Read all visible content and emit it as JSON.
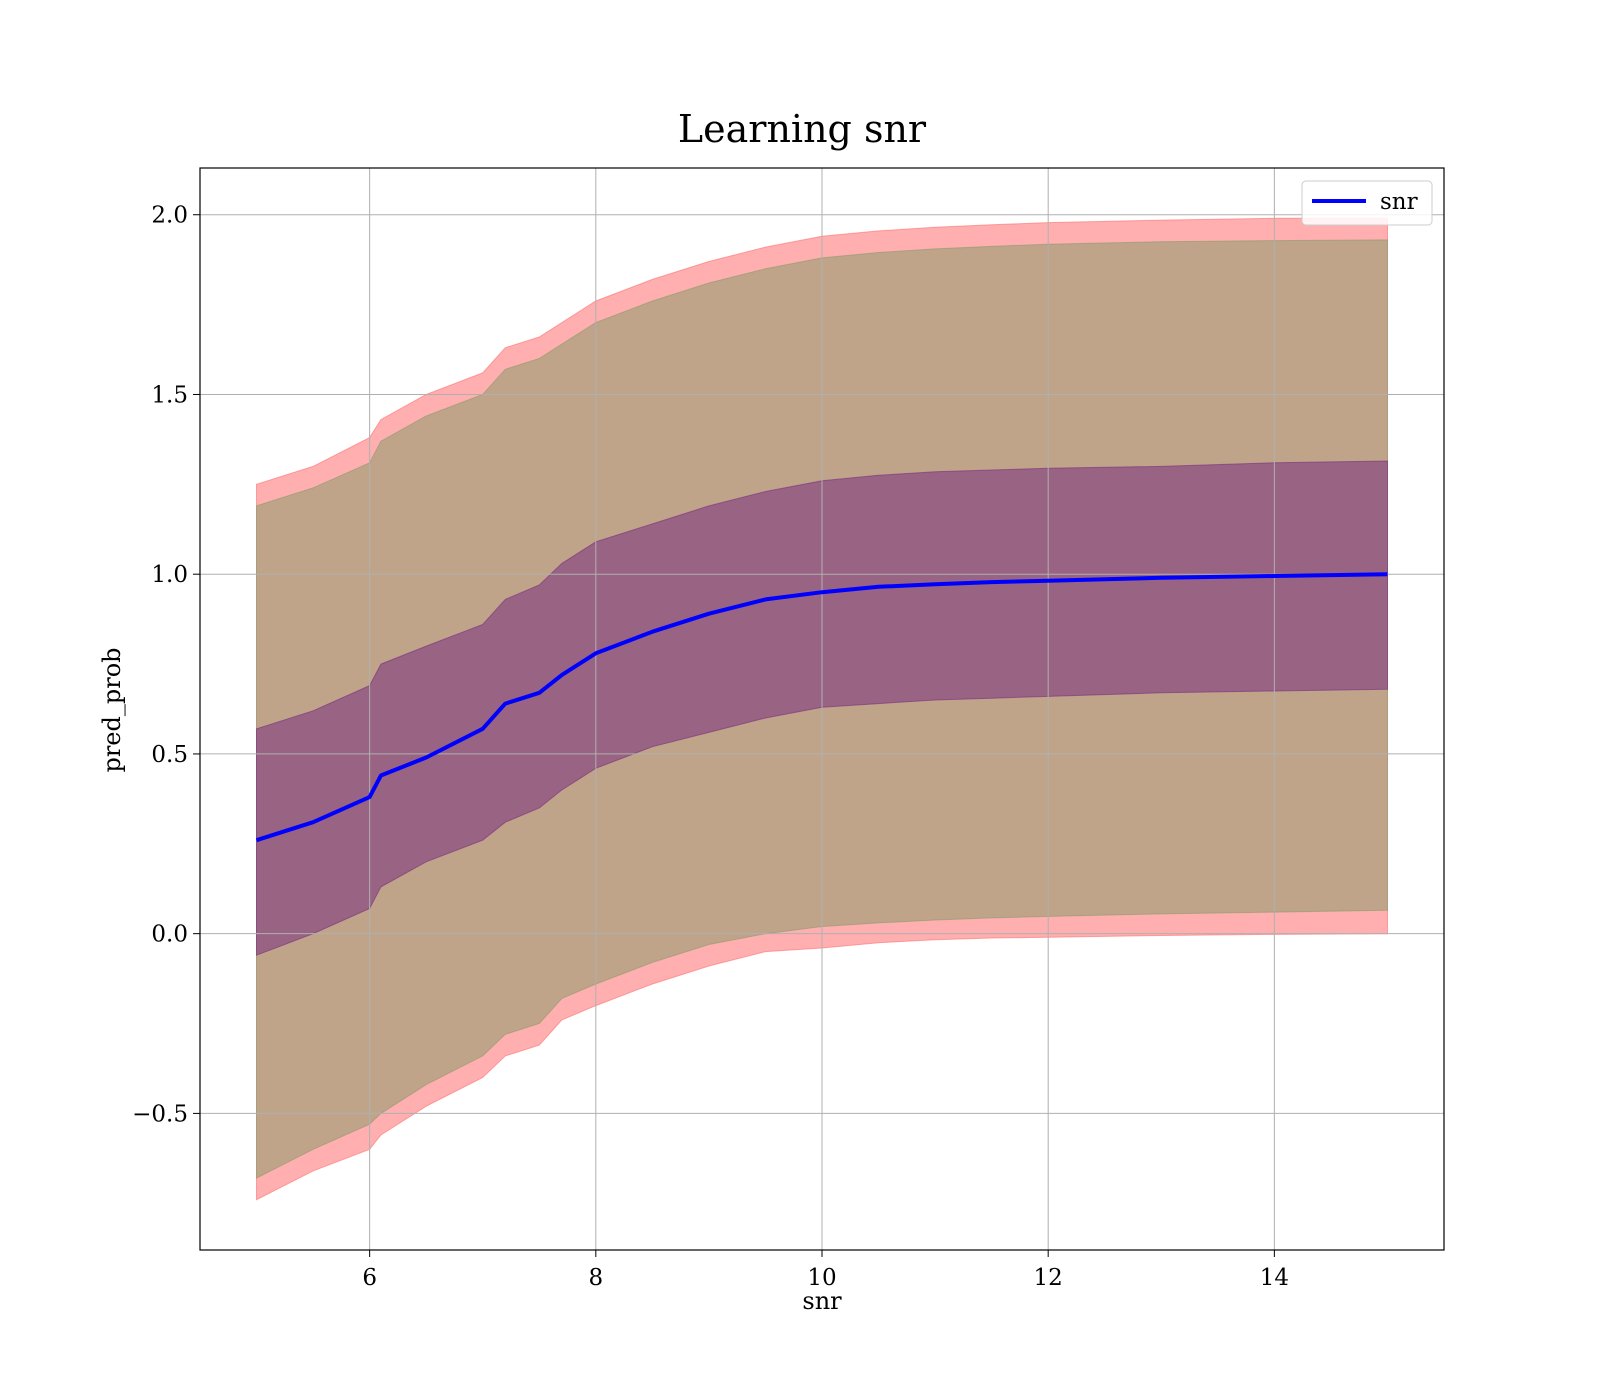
{
  "chart_data": {
    "type": "line",
    "title": "Learning snr",
    "xlabel": "snr",
    "ylabel": "pred_prob",
    "xlim": [
      4.5,
      15.5
    ],
    "ylim": [
      -0.88,
      2.13
    ],
    "xticks": [
      6,
      8,
      10,
      12,
      14
    ],
    "yticks": [
      -0.5,
      0.0,
      0.5,
      1.0,
      1.5,
      2.0
    ],
    "xtick_labels": [
      "6",
      "8",
      "10",
      "12",
      "14"
    ],
    "ytick_labels": [
      "−0.5",
      "0.0",
      "0.5",
      "1.0",
      "1.5",
      "2.0"
    ],
    "grid": true,
    "legend_position": "top-right",
    "x": [
      5.0,
      5.5,
      6.0,
      6.1,
      6.5,
      7.0,
      7.2,
      7.5,
      7.7,
      8.0,
      8.5,
      9.0,
      9.5,
      10.0,
      10.5,
      11.0,
      11.5,
      12.0,
      13.0,
      14.0,
      15.0
    ],
    "series": [
      {
        "name": "snr",
        "color": "#0000ff",
        "values": [
          0.26,
          0.31,
          0.38,
          0.44,
          0.49,
          0.57,
          0.64,
          0.67,
          0.72,
          0.78,
          0.84,
          0.89,
          0.93,
          0.95,
          0.965,
          0.972,
          0.978,
          0.982,
          0.99,
          0.995,
          1.0
        ]
      }
    ],
    "bands": [
      {
        "color": "#ff6e6e",
        "opacity": 0.55,
        "lower": [
          -0.74,
          -0.66,
          -0.6,
          -0.56,
          -0.48,
          -0.4,
          -0.34,
          -0.31,
          -0.24,
          -0.2,
          -0.14,
          -0.09,
          -0.05,
          -0.04,
          -0.025,
          -0.017,
          -0.012,
          -0.01,
          -0.005,
          -0.002,
          0.0
        ],
        "upper": [
          1.25,
          1.3,
          1.38,
          1.43,
          1.5,
          1.56,
          1.63,
          1.66,
          1.7,
          1.76,
          1.82,
          1.87,
          1.91,
          1.94,
          1.955,
          1.965,
          1.972,
          1.978,
          1.985,
          1.99,
          1.99
        ]
      },
      {
        "color": "#8b9b6b",
        "opacity": 0.55,
        "lower": [
          -0.68,
          -0.6,
          -0.53,
          -0.5,
          -0.42,
          -0.34,
          -0.28,
          -0.25,
          -0.18,
          -0.14,
          -0.08,
          -0.03,
          0.0,
          0.02,
          0.03,
          0.038,
          0.044,
          0.048,
          0.055,
          0.06,
          0.065
        ],
        "upper": [
          1.19,
          1.24,
          1.31,
          1.37,
          1.44,
          1.5,
          1.57,
          1.6,
          1.64,
          1.7,
          1.76,
          1.81,
          1.85,
          1.88,
          1.895,
          1.905,
          1.912,
          1.918,
          1.925,
          1.928,
          1.93
        ]
      },
      {
        "color": "#7a2e7e",
        "opacity": 0.55,
        "lower": [
          -0.06,
          0.0,
          0.07,
          0.13,
          0.2,
          0.26,
          0.31,
          0.35,
          0.4,
          0.46,
          0.52,
          0.56,
          0.6,
          0.63,
          0.64,
          0.65,
          0.655,
          0.66,
          0.67,
          0.675,
          0.68
        ],
        "upper": [
          0.57,
          0.62,
          0.69,
          0.75,
          0.8,
          0.86,
          0.93,
          0.97,
          1.03,
          1.09,
          1.14,
          1.19,
          1.23,
          1.26,
          1.275,
          1.285,
          1.29,
          1.295,
          1.3,
          1.31,
          1.315
        ]
      }
    ]
  }
}
